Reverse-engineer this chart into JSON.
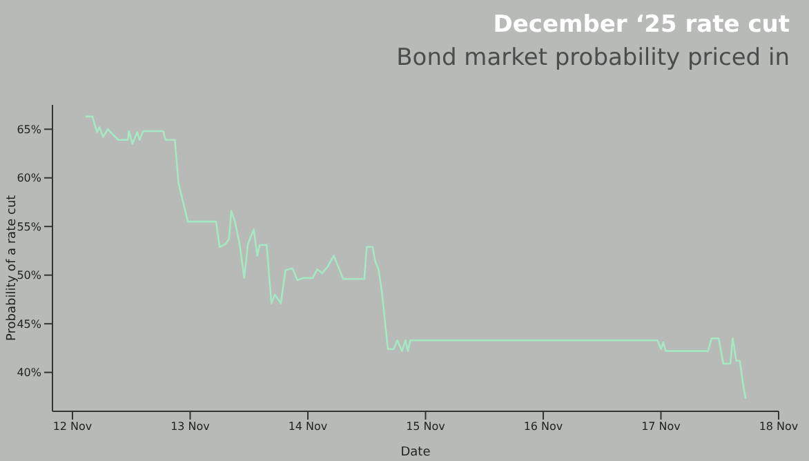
{
  "chart_data": {
    "type": "line",
    "title": "December ‘25 rate cut",
    "subtitle": "Bond market probability priced in",
    "xlabel": "Date",
    "ylabel": "Probability of a rate cut",
    "xlim": [
      "--11-11T19:55",
      "--11-18"
    ],
    "xticks": [
      {
        "value": "--11-12",
        "label": "12 Nov"
      },
      {
        "value": "--11-13",
        "label": "13 Nov"
      },
      {
        "value": "--11-14",
        "label": "14 Nov"
      },
      {
        "value": "--11-15",
        "label": "15 Nov"
      },
      {
        "value": "--11-16",
        "label": "16 Nov"
      },
      {
        "value": "--11-17",
        "label": "17 Nov"
      },
      {
        "value": "--11-18",
        "label": "18 Nov"
      }
    ],
    "ylim": [
      36,
      67.5
    ],
    "yticks": [
      {
        "value": 40,
        "label": "40%"
      },
      {
        "value": 45,
        "label": "45%"
      },
      {
        "value": 50,
        "label": "50%"
      },
      {
        "value": 55,
        "label": "55%"
      },
      {
        "value": 60,
        "label": "60%"
      },
      {
        "value": 65,
        "label": "65%"
      }
    ],
    "grid": false,
    "legend": false,
    "marker": "none",
    "line_style": "solid",
    "series": [
      {
        "color": "#a6e8c2",
        "x": [
          "--11-12T02:38",
          "--11-12T04:05",
          "--11-12T04:34",
          "--11-12T05:02",
          "--11-12T05:31",
          "--11-12T06:14",
          "--11-12T07:12",
          "--11-12T08:10",
          "--11-12T09:22",
          "--11-12T11:17",
          "--11-12T11:31",
          "--11-12T12:14",
          "--11-12T13:12",
          "--11-12T13:41",
          "--11-12T14:24",
          "--11-12T18:29",
          "--11-12T18:58",
          "--11-12T20:53",
          "--11-12T21:36",
          "--11-12T23:31",
          "--11-13T05:17",
          "--11-13T06:00",
          "--11-13T07:12",
          "--11-13T07:55",
          "--11-13T08:24",
          "--11-13T09:07",
          "--11-13T10:05",
          "--11-13T11:02",
          "--11-13T11:46",
          "--11-13T12:58",
          "--11-13T13:41",
          "--11-13T14:10",
          "--11-13T15:36",
          "--11-13T16:34",
          "--11-13T17:17",
          "--11-13T18:29",
          "--11-13T19:26",
          "--11-13T20:53",
          "--11-13T21:50",
          "--11-13T23:02",
          "--11-14T00:58",
          "--11-14T01:55",
          "--11-14T02:53",
          "--11-14T04:05",
          "--11-14T05:17",
          "--11-14T06:14",
          "--11-14T07:12",
          "--11-14T11:31",
          "--11-14T12:00",
          "--11-14T13:12",
          "--11-14T13:41",
          "--11-14T14:24",
          "--11-14T15:07",
          "--11-14T16:19",
          "--11-14T17:31",
          "--11-14T18:14",
          "--11-14T19:12",
          "--11-14T19:55",
          "--11-14T20:24",
          "--11-14T20:53",
          "--11-16T23:17",
          "--11-17T00:00",
          "--11-17T00:29",
          "--11-17T00:58",
          "--11-17T09:36",
          "--11-17T10:19",
          "--11-17T11:46",
          "--11-17T12:43",
          "--11-17T14:10",
          "--11-17T14:38",
          "--11-17T15:22",
          "--11-17T16:05",
          "--11-17T16:48",
          "--11-17T17:17"
        ],
        "values": [
          66.3,
          66.3,
          65.4,
          64.7,
          65.2,
          64.2,
          65,
          64.5,
          63.9,
          63.9,
          64.8,
          63.5,
          64.7,
          63.9,
          64.8,
          64.8,
          63.9,
          63.9,
          59.5,
          55.5,
          55.5,
          52.9,
          53.2,
          53.7,
          56.6,
          55.5,
          53.2,
          49.7,
          53.2,
          54.7,
          52,
          53.1,
          53.1,
          47.1,
          48,
          47.1,
          50.5,
          50.7,
          49.5,
          49.7,
          49.7,
          50.6,
          50.2,
          50.9,
          52,
          50.8,
          49.6,
          49.6,
          52.9,
          52.9,
          51.5,
          50.6,
          48.2,
          42.4,
          42.4,
          43.3,
          42.2,
          43.3,
          42.2,
          43.3,
          43.3,
          42.4,
          43.1,
          42.2,
          42.2,
          43.5,
          43.5,
          40.9,
          40.9,
          43.5,
          41.2,
          41.2,
          38.6,
          37.3
        ]
      }
    ]
  }
}
